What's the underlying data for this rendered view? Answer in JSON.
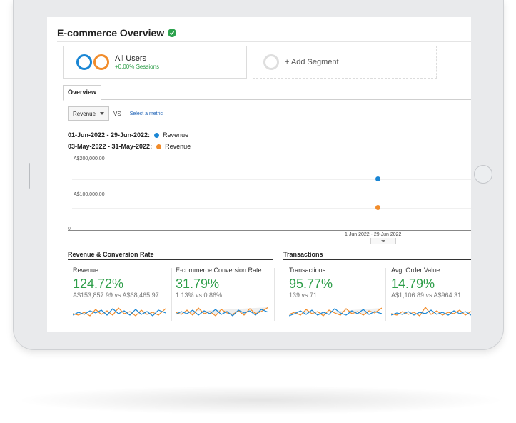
{
  "header": {
    "title": "E-commerce Overview"
  },
  "segments": [
    {
      "name": "All Users",
      "sub": "+0.00% Sessions"
    },
    {
      "name": "+ Add Segment"
    }
  ],
  "tabs": [
    "Overview"
  ],
  "metric": {
    "selected": "Revenue",
    "vs": "VS",
    "link": "Select a metric"
  },
  "legend": [
    {
      "range": "01-Jun-2022 - 29-Jun-2022:",
      "series": "Revenue",
      "color": "#1a86d4"
    },
    {
      "range": "03-May-2022 - 31-May-2022:",
      "series": "Revenue",
      "color": "#f18c2b"
    }
  ],
  "chart_data": {
    "type": "scatter",
    "yticks": [
      "A$200,000.00",
      "A$100,000.00",
      "0"
    ],
    "ylim": [
      0,
      250000
    ],
    "xlabel": "1 Jun 2022 - 29 Jun 2022",
    "series": [
      {
        "name": "01-Jun-2022 - 29-Jun-2022",
        "color": "#1a86d4",
        "values": [
          153857.99
        ]
      },
      {
        "name": "03-May-2022 - 31-May-2022",
        "color": "#f18c2b",
        "values": [
          68465.97
        ]
      }
    ]
  },
  "sections": {
    "left": "Revenue & Conversion Rate",
    "right": "Transactions"
  },
  "tiles": [
    {
      "label": "Revenue",
      "value": "124.72%",
      "compare": "A$153,857.99 vs A$68,465.97"
    },
    {
      "label": "E-commerce Conversion Rate",
      "value": "31.79%",
      "compare": "1.13% vs 0.86%"
    },
    {
      "label": "Transactions",
      "value": "95.77%",
      "compare": "139 vs 71"
    },
    {
      "label": "Avg. Order Value",
      "value": "14.79%",
      "compare": "A$1,106.89 vs A$964.31"
    }
  ],
  "colors": {
    "positive": "#2e9e49",
    "series_current": "#1a86d4",
    "series_previous": "#f18c2b"
  }
}
